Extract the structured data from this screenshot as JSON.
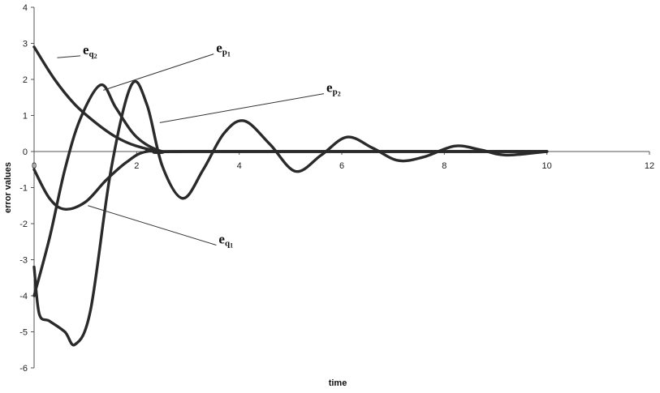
{
  "chart_data": {
    "type": "line",
    "title": "",
    "xlabel": "time",
    "ylabel": "error values",
    "xlim": [
      0,
      12
    ],
    "ylim": [
      -6,
      4
    ],
    "x_ticks": [
      0,
      2,
      4,
      6,
      8,
      10,
      12
    ],
    "y_ticks": [
      -6,
      -5,
      -4,
      -3,
      -2,
      -1,
      0,
      1,
      2,
      3,
      4
    ],
    "grid": false,
    "series": [
      {
        "name": "e_q2",
        "label_base": "e",
        "label_sub": "q",
        "label_subsub": "2",
        "x": [
          0,
          0.4,
          0.8,
          1.2,
          1.6,
          2.0,
          2.5,
          3,
          10
        ],
        "y": [
          2.9,
          2.0,
          1.3,
          0.8,
          0.4,
          0.15,
          0.0,
          0.0,
          0.0
        ]
      },
      {
        "name": "e_p1",
        "label_base": "e",
        "label_sub": "p",
        "label_subsub": "1",
        "x": [
          0,
          0.3,
          0.6,
          0.9,
          1.3,
          1.6,
          2.0,
          2.5,
          3,
          10
        ],
        "y": [
          -4.0,
          -2.4,
          -0.5,
          0.9,
          1.85,
          1.2,
          0.4,
          0.0,
          0.0,
          0.0
        ]
      },
      {
        "name": "e_p2",
        "label_base": "e",
        "label_sub": "p",
        "label_subsub": "2",
        "x": [
          0,
          0.1,
          0.3,
          0.6,
          0.8,
          1.1,
          1.5,
          1.9,
          2.2,
          2.5,
          2.9,
          3.3,
          3.7,
          4.1,
          4.6,
          5.1,
          5.6,
          6.1,
          6.6,
          7.1,
          7.6,
          8.2,
          8.7,
          9.2,
          10
        ],
        "y": [
          -3.2,
          -4.5,
          -4.7,
          -5.0,
          -5.35,
          -4.4,
          -0.5,
          1.85,
          1.3,
          -0.4,
          -1.3,
          -0.5,
          0.5,
          0.85,
          0.2,
          -0.55,
          -0.1,
          0.4,
          0.1,
          -0.25,
          -0.15,
          0.15,
          0.05,
          -0.1,
          0.0
        ]
      },
      {
        "name": "e_q1",
        "label_base": "e",
        "label_sub": "q",
        "label_subsub": "1",
        "x": [
          0,
          0.3,
          0.6,
          1.0,
          1.4,
          1.8,
          2.2,
          3,
          10
        ],
        "y": [
          -0.5,
          -1.3,
          -1.6,
          -1.4,
          -0.8,
          -0.3,
          0.0,
          0.0,
          0.0
        ]
      }
    ],
    "annotations": [
      {
        "series": "e_q2",
        "tx": 0.95,
        "ty": 2.7,
        "px": 0.45,
        "py": 2.6
      },
      {
        "series": "e_p1",
        "tx": 3.55,
        "ty": 2.75,
        "px": 1.35,
        "py": 1.7
      },
      {
        "series": "e_p2",
        "tx": 5.7,
        "ty": 1.65,
        "px": 2.45,
        "py": 0.8
      },
      {
        "series": "e_q1",
        "tx": 3.6,
        "ty": -2.55,
        "px": 1.05,
        "py": -1.5
      }
    ]
  }
}
